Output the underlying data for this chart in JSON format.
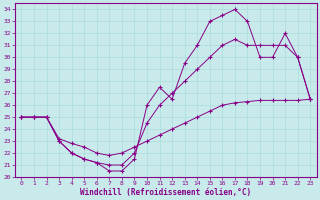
{
  "xlabel": "Windchill (Refroidissement éolien,°C)",
  "background_color": "#c8eaea",
  "line_color": "#880088",
  "grid_color": "#aadddd",
  "xlim": [
    -0.5,
    23.5
  ],
  "ylim": [
    20,
    34.5
  ],
  "xticks": [
    0,
    1,
    2,
    3,
    4,
    5,
    6,
    7,
    8,
    9,
    10,
    11,
    12,
    13,
    14,
    15,
    16,
    17,
    18,
    19,
    20,
    21,
    22,
    23
  ],
  "yticks": [
    20,
    21,
    22,
    23,
    24,
    25,
    26,
    27,
    28,
    29,
    30,
    31,
    32,
    33,
    34
  ],
  "curve_spike_x": [
    0,
    1,
    2,
    3,
    4,
    5,
    6,
    7,
    8,
    9,
    10,
    11,
    12,
    13,
    14,
    15,
    16,
    17,
    18,
    19,
    20,
    21,
    22,
    23
  ],
  "curve_spike_y": [
    25,
    25,
    25,
    23,
    22,
    21.5,
    21.2,
    20.5,
    20.5,
    21.5,
    26,
    27.5,
    26.5,
    29.5,
    31,
    33,
    33.5,
    34,
    33,
    30,
    30,
    32,
    30,
    26.5
  ],
  "curve_middle_x": [
    0,
    1,
    2,
    3,
    4,
    5,
    6,
    7,
    8,
    9,
    10,
    11,
    12,
    13,
    14,
    15,
    16,
    17,
    18,
    19,
    20,
    21,
    22,
    23
  ],
  "curve_middle_y": [
    25,
    25,
    25,
    23,
    22,
    21.5,
    21.2,
    21,
    21,
    22,
    24.5,
    26,
    27,
    28,
    29,
    30,
    31,
    31.5,
    31,
    31,
    31,
    31,
    30,
    26.5
  ],
  "curve_flat_x": [
    0,
    1,
    2,
    3,
    4,
    5,
    6,
    7,
    8,
    9,
    10,
    11,
    12,
    13,
    14,
    15,
    16,
    17,
    18,
    19,
    20,
    21,
    22,
    23
  ],
  "curve_flat_y": [
    25,
    25,
    25,
    23.2,
    22.8,
    22.5,
    22,
    21.8,
    22,
    22.5,
    23,
    23.5,
    24,
    24.5,
    25,
    25.5,
    26,
    26.2,
    26.3,
    26.4,
    26.4,
    26.4,
    26.4,
    26.5
  ]
}
